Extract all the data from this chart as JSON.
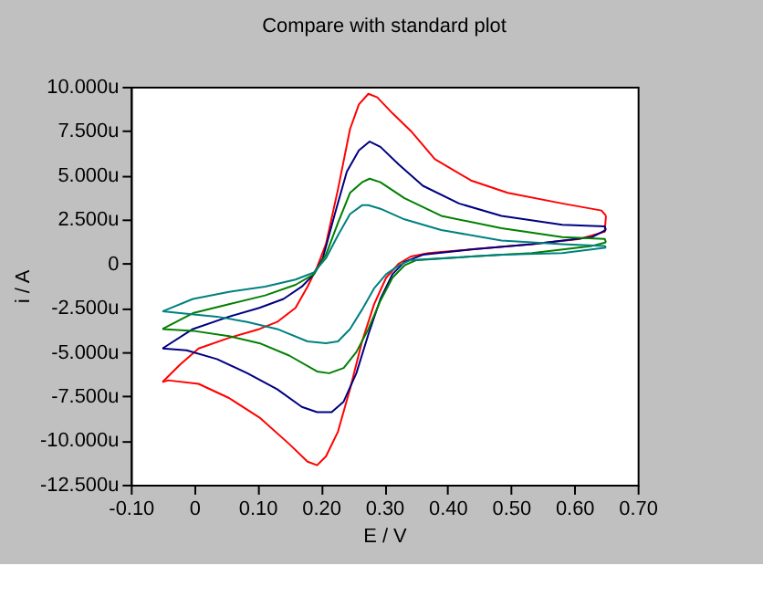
{
  "chart_data": {
    "type": "line",
    "title": "Compare with standard plot",
    "xlabel": "E / V",
    "ylabel": "i / A",
    "xlim": [
      -0.1,
      0.7
    ],
    "ylim": [
      -12.5,
      10
    ],
    "xticks": [
      {
        "value": -0.1,
        "label": "-0.10"
      },
      0,
      {
        "value": 0.1,
        "label": "0.10"
      },
      {
        "value": 0.2,
        "label": "0.20"
      },
      {
        "value": 0.3,
        "label": "0.30"
      },
      {
        "value": 0.4,
        "label": "0.40"
      },
      {
        "value": 0.5,
        "label": "0.50"
      },
      {
        "value": 0.6,
        "label": "0.60"
      },
      {
        "value": 0.7,
        "label": "0.70"
      }
    ],
    "yticks": [
      {
        "value": -12.5,
        "label": "-12.500u"
      },
      {
        "value": -10,
        "label": "-10.000u"
      },
      {
        "value": -7.5,
        "label": "-7.500u"
      },
      {
        "value": -5,
        "label": "-5.000u"
      },
      {
        "value": -2.5,
        "label": "-2.500u"
      },
      0,
      {
        "value": 2.5,
        "label": "2.500u"
      },
      {
        "value": 5,
        "label": "5.000u"
      },
      {
        "value": 7.5,
        "label": "7.500u"
      },
      {
        "value": 10,
        "label": "10.000u"
      }
    ],
    "series": [
      {
        "color": "#ff0000",
        "x": [
          -0.05,
          -0.022,
          0.007,
          0.055,
          0.103,
          0.131,
          0.16,
          0.179,
          0.194,
          0.208,
          0.227,
          0.246,
          0.26,
          0.275,
          0.289,
          0.313,
          0.342,
          0.38,
          0.437,
          0.495,
          0.581,
          0.643,
          0.65
        ],
        "values": [
          -6.7,
          -5.7,
          -4.8,
          -4.2,
          -3.7,
          -3.3,
          -2.5,
          -1.3,
          -0.2,
          1.1,
          4.2,
          7.6,
          9.0,
          9.6,
          9.4,
          8.5,
          7.5,
          5.9,
          4.7,
          4.0,
          3.4,
          3.0,
          2.7
        ]
      },
      {
        "color": "#ff0000",
        "x": [
          0.65,
          0.648,
          0.609,
          0.533,
          0.437,
          0.37,
          0.342,
          0.323,
          0.303,
          0.284,
          0.265,
          0.246,
          0.227,
          0.208,
          0.194,
          0.179,
          0.15,
          0.103,
          0.055,
          0.007,
          -0.041,
          -0.05
        ],
        "values": [
          2.7,
          1.8,
          1.4,
          1.1,
          0.8,
          0.6,
          0.4,
          0.0,
          -0.8,
          -2.3,
          -4.4,
          -7.1,
          -9.5,
          -10.9,
          -11.4,
          -11.2,
          -10.2,
          -8.7,
          -7.6,
          -6.8,
          -6.6,
          -6.7
        ]
      },
      {
        "color": "#000080",
        "x": [
          -0.05,
          -0.002,
          0.055,
          0.103,
          0.141,
          0.17,
          0.189,
          0.203,
          0.222,
          0.241,
          0.26,
          0.277,
          0.294,
          0.323,
          0.361,
          0.418,
          0.485,
          0.581,
          0.648,
          0.65
        ],
        "values": [
          -4.8,
          -3.7,
          -3.0,
          -2.5,
          -2.0,
          -1.3,
          -0.6,
          0.3,
          2.8,
          5.2,
          6.4,
          6.9,
          6.6,
          5.6,
          4.4,
          3.4,
          2.7,
          2.2,
          2.1,
          1.9
        ]
      },
      {
        "color": "#000080",
        "x": [
          0.65,
          0.628,
          0.533,
          0.437,
          0.361,
          0.332,
          0.313,
          0.294,
          0.275,
          0.256,
          0.236,
          0.217,
          0.194,
          0.17,
          0.131,
          0.084,
          0.036,
          -0.012,
          -0.05
        ],
        "values": [
          1.9,
          1.5,
          1.1,
          0.8,
          0.5,
          0.1,
          -0.6,
          -2.0,
          -4.0,
          -6.2,
          -7.8,
          -8.4,
          -8.4,
          -8.1,
          -7.1,
          -6.2,
          -5.4,
          -4.9,
          -4.8
        ]
      },
      {
        "color": "#008000",
        "x": [
          -0.05,
          -0.002,
          0.055,
          0.112,
          0.16,
          0.189,
          0.208,
          0.227,
          0.246,
          0.265,
          0.277,
          0.294,
          0.332,
          0.39,
          0.485,
          0.581,
          0.648,
          0.65
        ],
        "values": [
          -3.7,
          -2.8,
          -2.3,
          -1.8,
          -1.2,
          -0.6,
          0.5,
          2.3,
          4.0,
          4.6,
          4.8,
          4.6,
          3.7,
          2.7,
          2.0,
          1.5,
          1.4,
          1.2
        ]
      },
      {
        "color": "#008000",
        "x": [
          0.65,
          0.628,
          0.533,
          0.437,
          0.351,
          0.332,
          0.313,
          0.294,
          0.275,
          0.256,
          0.236,
          0.213,
          0.194,
          0.15,
          0.103,
          0.055,
          -0.002,
          -0.05
        ],
        "values": [
          1.2,
          1.0,
          0.6,
          0.4,
          0.2,
          -0.1,
          -0.8,
          -2.1,
          -3.7,
          -5.0,
          -5.9,
          -6.2,
          -6.1,
          -5.2,
          -4.5,
          -4.1,
          -3.8,
          -3.7
        ]
      },
      {
        "color": "#008080",
        "x": [
          -0.05,
          -0.002,
          0.055,
          0.112,
          0.16,
          0.189,
          0.208,
          0.227,
          0.246,
          0.265,
          0.275,
          0.294,
          0.332,
          0.39,
          0.485,
          0.581,
          0.648,
          0.65
        ],
        "values": [
          -2.7,
          -2.0,
          -1.6,
          -1.3,
          -0.9,
          -0.5,
          0.3,
          1.6,
          2.8,
          3.3,
          3.3,
          3.1,
          2.5,
          1.9,
          1.3,
          1.1,
          1.0,
          0.9
        ]
      },
      {
        "color": "#008080",
        "x": [
          0.65,
          0.581,
          0.485,
          0.39,
          0.342,
          0.323,
          0.303,
          0.284,
          0.265,
          0.246,
          0.227,
          0.208,
          0.179,
          0.131,
          0.084,
          0.036,
          -0.022,
          -0.05
        ],
        "values": [
          0.9,
          0.6,
          0.5,
          0.3,
          0.2,
          -0.1,
          -0.6,
          -1.4,
          -2.6,
          -3.7,
          -4.4,
          -4.5,
          -4.4,
          -3.7,
          -3.3,
          -3.0,
          -2.8,
          -2.7
        ]
      }
    ]
  }
}
